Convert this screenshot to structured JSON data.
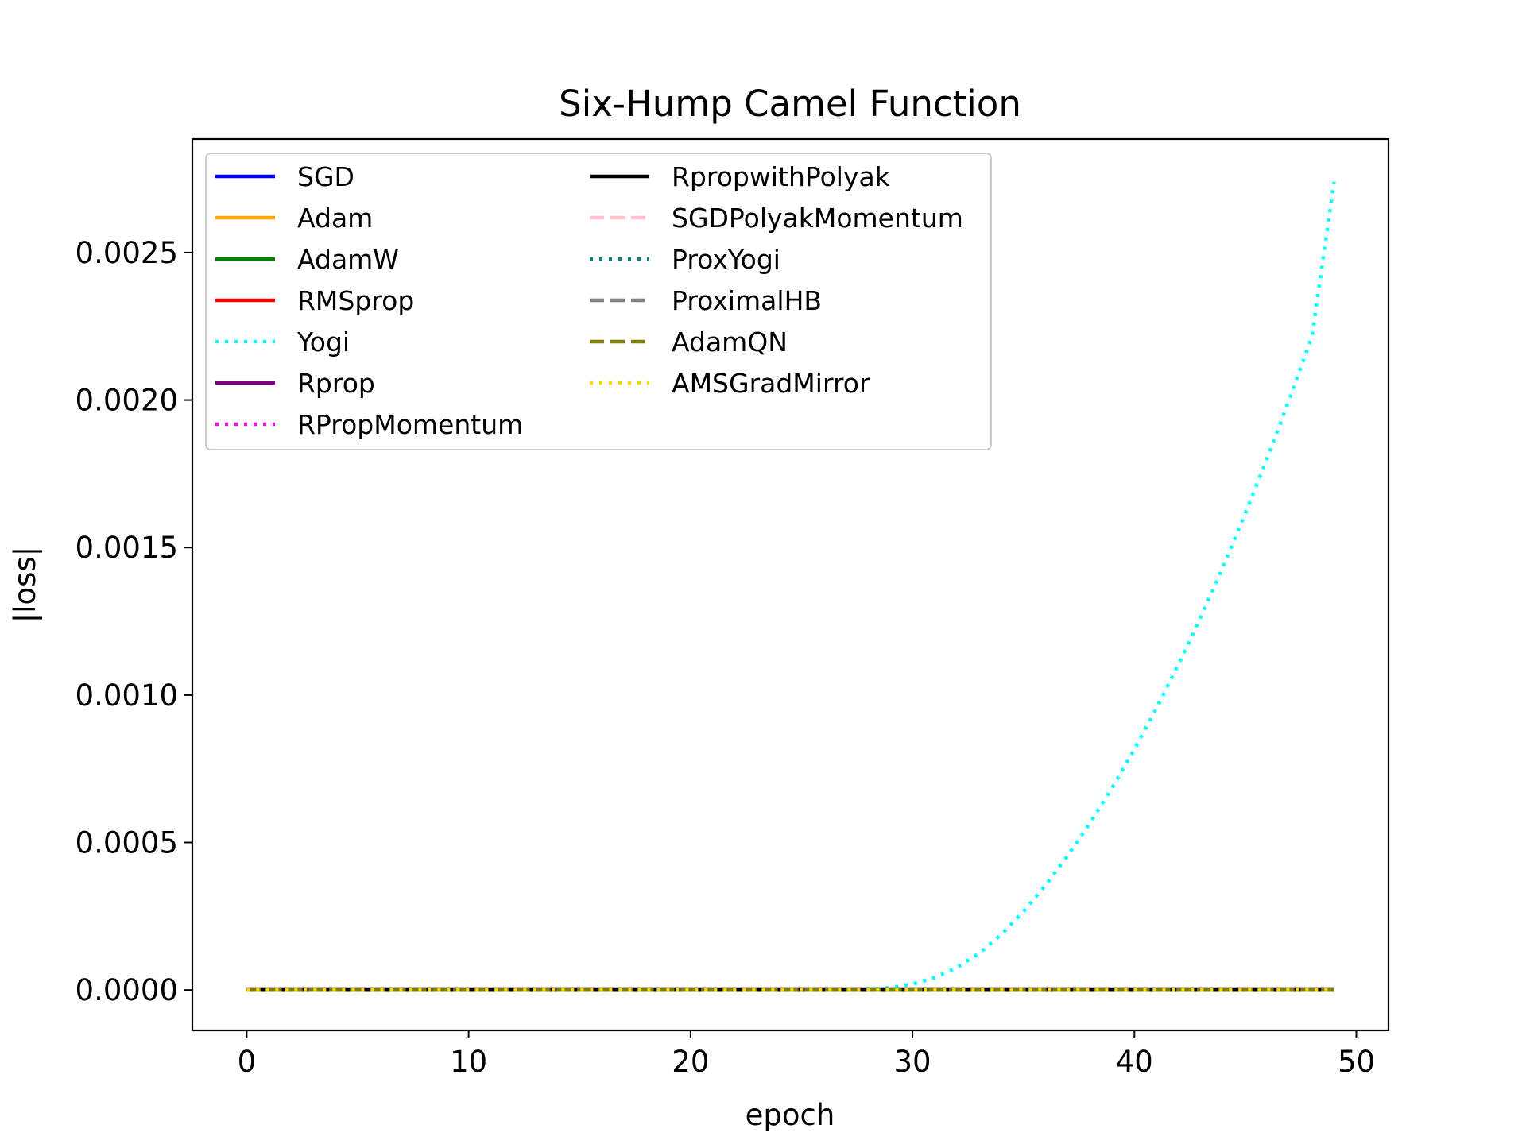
{
  "chart_data": {
    "type": "line",
    "title": "Six-Hump Camel Function",
    "xlabel": "epoch",
    "ylabel": "|loss|",
    "xlim": [
      -2.45,
      51.45
    ],
    "ylim": [
      -0.000137,
      0.002885
    ],
    "xticks": [
      0,
      10,
      20,
      30,
      40,
      50
    ],
    "xtick_labels": [
      "0",
      "10",
      "20",
      "30",
      "40",
      "50"
    ],
    "yticks": [
      0.0,
      0.0005,
      0.001,
      0.0015,
      0.002,
      0.0025
    ],
    "ytick_labels": [
      "0.0000",
      "0.0005",
      "0.0010",
      "0.0015",
      "0.0020",
      "0.0025"
    ],
    "grid": false,
    "legend_position": "upper-left",
    "legend_columns": 2,
    "x": [
      0,
      1,
      2,
      3,
      4,
      5,
      6,
      7,
      8,
      9,
      10,
      11,
      12,
      13,
      14,
      15,
      16,
      17,
      18,
      19,
      20,
      21,
      22,
      23,
      24,
      25,
      26,
      27,
      28,
      29,
      30,
      31,
      32,
      33,
      34,
      35,
      36,
      37,
      38,
      39,
      40,
      41,
      42,
      43,
      44,
      45,
      46,
      47,
      48,
      49
    ],
    "series": [
      {
        "name": "SGD",
        "color": "#0000ff",
        "dash": "solid",
        "values": [
          0,
          0,
          0,
          0,
          0,
          0,
          0,
          0,
          0,
          0,
          0,
          0,
          0,
          0,
          0,
          0,
          0,
          0,
          0,
          0,
          0,
          0,
          0,
          0,
          0,
          0,
          0,
          0,
          0,
          0,
          0,
          0,
          0,
          0,
          0,
          0,
          0,
          0,
          0,
          0,
          0,
          0,
          0,
          0,
          0,
          0,
          0,
          0,
          0,
          0
        ]
      },
      {
        "name": "Adam",
        "color": "#ffa500",
        "dash": "solid",
        "values": [
          0,
          0,
          0,
          0,
          0,
          0,
          0,
          0,
          0,
          0,
          0,
          0,
          0,
          0,
          0,
          0,
          0,
          0,
          0,
          0,
          0,
          0,
          0,
          0,
          0,
          0,
          0,
          0,
          0,
          0,
          0,
          0,
          0,
          0,
          0,
          0,
          0,
          0,
          0,
          0,
          0,
          0,
          0,
          0,
          0,
          0,
          0,
          0,
          0,
          0
        ]
      },
      {
        "name": "AdamW",
        "color": "#008000",
        "dash": "solid",
        "values": [
          0,
          0,
          0,
          0,
          0,
          0,
          0,
          0,
          0,
          0,
          0,
          0,
          0,
          0,
          0,
          0,
          0,
          0,
          0,
          0,
          0,
          0,
          0,
          0,
          0,
          0,
          0,
          0,
          0,
          0,
          0,
          0,
          0,
          0,
          0,
          0,
          0,
          0,
          0,
          0,
          0,
          0,
          0,
          0,
          0,
          0,
          0,
          0,
          0,
          0
        ]
      },
      {
        "name": "RMSprop",
        "color": "#ff0000",
        "dash": "solid",
        "values": [
          0,
          0,
          0,
          0,
          0,
          0,
          0,
          0,
          0,
          0,
          0,
          0,
          0,
          0,
          0,
          0,
          0,
          0,
          0,
          0,
          0,
          0,
          0,
          0,
          0,
          0,
          0,
          0,
          0,
          0,
          0,
          0,
          0,
          0,
          0,
          0,
          0,
          0,
          0,
          0,
          0,
          0,
          0,
          0,
          0,
          0,
          0,
          0,
          0,
          0
        ]
      },
      {
        "name": "Yogi",
        "color": "#00ffff",
        "dash": "dotted",
        "values": [
          0,
          0,
          0,
          0,
          0,
          0,
          0,
          0,
          0,
          0,
          0,
          0,
          0,
          0,
          0,
          0,
          0,
          0,
          0,
          0,
          0,
          0,
          0,
          0,
          0,
          0,
          0,
          0,
          2e-06,
          8e-06,
          2e-05,
          4.2e-05,
          7.6e-05,
          0.000124,
          0.000188,
          0.000266,
          0.000356,
          0.000456,
          0.000566,
          0.000686,
          0.000816,
          0.000956,
          0.001106,
          0.001266,
          0.001436,
          0.001616,
          0.001806,
          0.002006,
          0.002216,
          0.00274
        ]
      },
      {
        "name": "Rprop",
        "color": "#800080",
        "dash": "solid",
        "values": [
          0,
          0,
          0,
          0,
          0,
          0,
          0,
          0,
          0,
          0,
          0,
          0,
          0,
          0,
          0,
          0,
          0,
          0,
          0,
          0,
          0,
          0,
          0,
          0,
          0,
          0,
          0,
          0,
          0,
          0,
          0,
          0,
          0,
          0,
          0,
          0,
          0,
          0,
          0,
          0,
          0,
          0,
          0,
          0,
          0,
          0,
          0,
          0,
          0,
          0
        ]
      },
      {
        "name": "RPropMomentum",
        "color": "#ff00ff",
        "dash": "dotted",
        "values": [
          0,
          0,
          0,
          0,
          0,
          0,
          0,
          0,
          0,
          0,
          0,
          0,
          0,
          0,
          0,
          0,
          0,
          0,
          0,
          0,
          0,
          0,
          0,
          0,
          0,
          0,
          0,
          0,
          0,
          0,
          0,
          0,
          0,
          0,
          0,
          0,
          0,
          0,
          0,
          0,
          0,
          0,
          0,
          0,
          0,
          0,
          0,
          0,
          0,
          0
        ]
      },
      {
        "name": "RpropwithPolyak",
        "color": "#000000",
        "dash": "solid",
        "values": [
          0,
          0,
          0,
          0,
          0,
          0,
          0,
          0,
          0,
          0,
          0,
          0,
          0,
          0,
          0,
          0,
          0,
          0,
          0,
          0,
          0,
          0,
          0,
          0,
          0,
          0,
          0,
          0,
          0,
          0,
          0,
          0,
          0,
          0,
          0,
          0,
          0,
          0,
          0,
          0,
          0,
          0,
          0,
          0,
          0,
          0,
          0,
          0,
          0,
          0
        ]
      },
      {
        "name": "SGDPolyakMomentum",
        "color": "#ffc0cb",
        "dash": "dashed",
        "values": [
          0,
          0,
          0,
          0,
          0,
          0,
          0,
          0,
          0,
          0,
          0,
          0,
          0,
          0,
          0,
          0,
          0,
          0,
          0,
          0,
          0,
          0,
          0,
          0,
          0,
          0,
          0,
          0,
          0,
          0,
          0,
          0,
          0,
          0,
          0,
          0,
          0,
          0,
          0,
          0,
          0,
          0,
          0,
          0,
          0,
          0,
          0,
          0,
          0,
          0
        ]
      },
      {
        "name": "ProxYogi",
        "color": "#008080",
        "dash": "dotted",
        "values": [
          0,
          0,
          0,
          0,
          0,
          0,
          0,
          0,
          0,
          0,
          0,
          0,
          0,
          0,
          0,
          0,
          0,
          0,
          0,
          0,
          0,
          0,
          0,
          0,
          0,
          0,
          0,
          0,
          0,
          0,
          0,
          0,
          0,
          0,
          0,
          0,
          0,
          0,
          0,
          0,
          0,
          0,
          0,
          0,
          0,
          0,
          0,
          0,
          0,
          0
        ]
      },
      {
        "name": "ProximalHB",
        "color": "#808080",
        "dash": "dashed",
        "values": [
          0,
          0,
          0,
          0,
          0,
          0,
          0,
          0,
          0,
          0,
          0,
          0,
          0,
          0,
          0,
          0,
          0,
          0,
          0,
          0,
          0,
          0,
          0,
          0,
          0,
          0,
          0,
          0,
          0,
          0,
          0,
          0,
          0,
          0,
          0,
          0,
          0,
          0,
          0,
          0,
          0,
          0,
          0,
          0,
          0,
          0,
          0,
          0,
          0,
          0
        ]
      },
      {
        "name": "AdamQN",
        "color": "#808000",
        "dash": "dashed",
        "values": [
          0,
          0,
          0,
          0,
          0,
          0,
          0,
          0,
          0,
          0,
          0,
          0,
          0,
          0,
          0,
          0,
          0,
          0,
          0,
          0,
          0,
          0,
          0,
          0,
          0,
          0,
          0,
          0,
          0,
          0,
          0,
          0,
          0,
          0,
          0,
          0,
          0,
          0,
          0,
          0,
          0,
          0,
          0,
          0,
          0,
          0,
          0,
          0,
          0,
          0
        ]
      },
      {
        "name": "AMSGradMirror",
        "color": "#ffd700",
        "dash": "dotted",
        "values": [
          0,
          0,
          0,
          0,
          0,
          0,
          0,
          0,
          0,
          0,
          0,
          0,
          0,
          0,
          0,
          0,
          0,
          0,
          0,
          0,
          0,
          0,
          0,
          0,
          0,
          0,
          0,
          0,
          0,
          0,
          0,
          0,
          0,
          0,
          0,
          0,
          0,
          0,
          0,
          0,
          0,
          0,
          0,
          0,
          0,
          0,
          0,
          0,
          0,
          0
        ]
      }
    ]
  }
}
